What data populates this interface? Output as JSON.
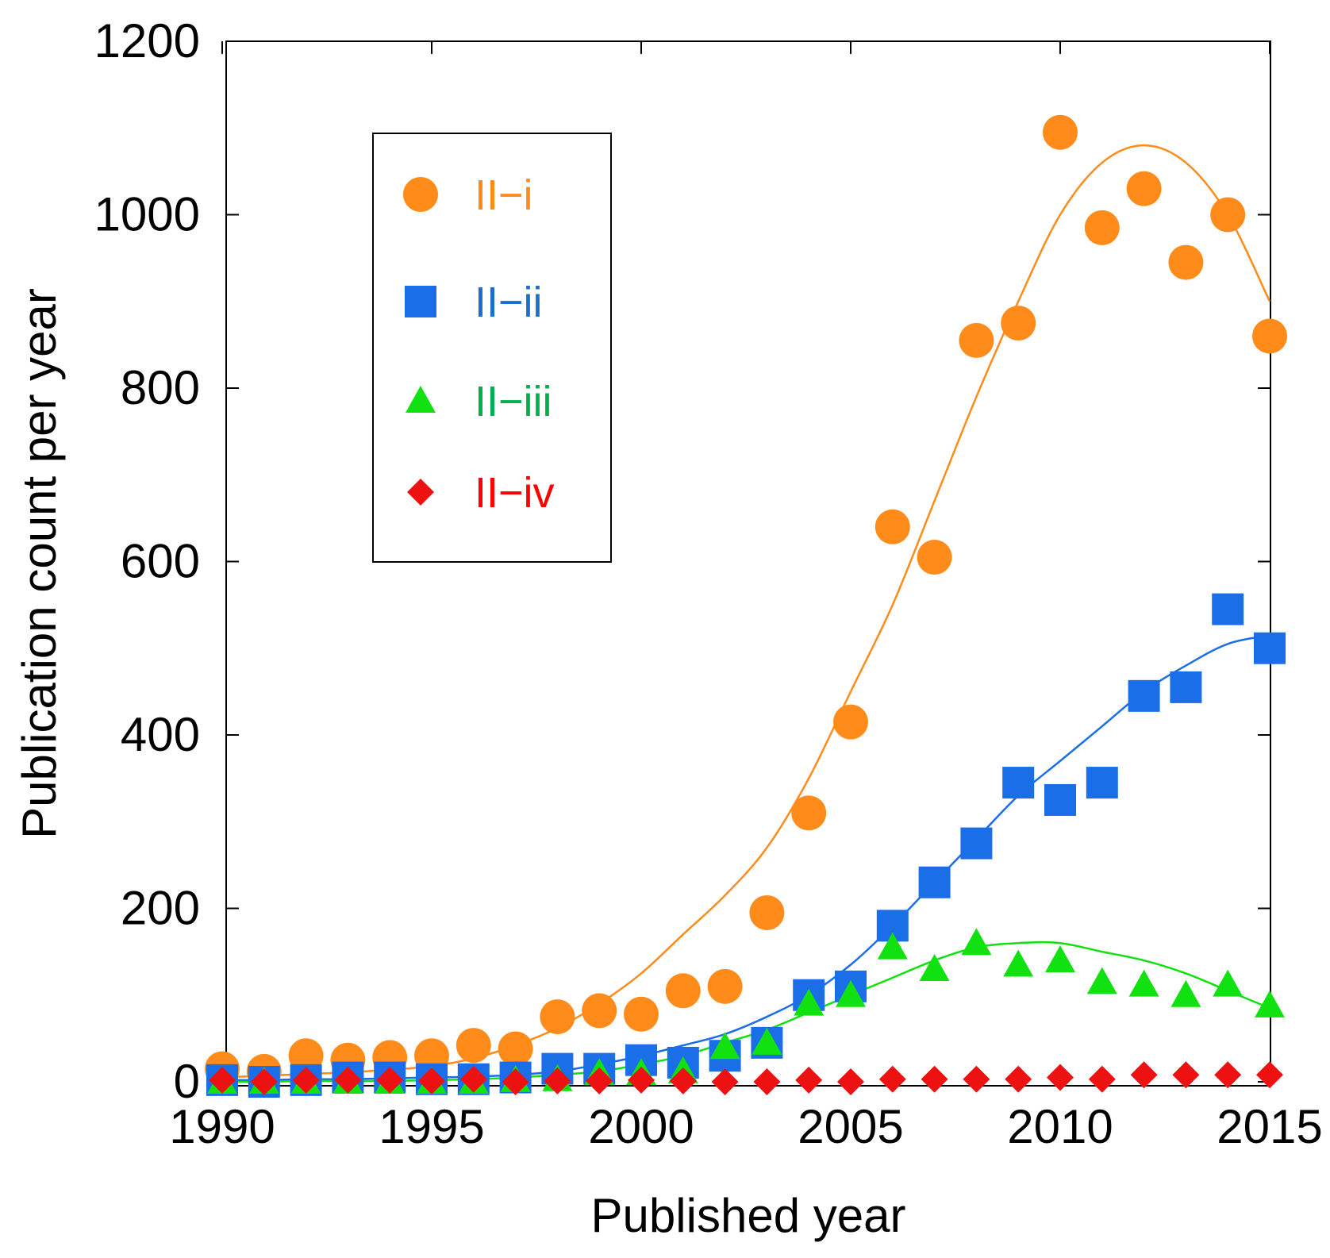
{
  "chart_data": {
    "type": "scatter",
    "title": "",
    "xlabel": "Published year",
    "ylabel": "Publication count per year",
    "xlim": [
      1990,
      2015
    ],
    "ylim": [
      0,
      1200
    ],
    "xticks": [
      1990,
      1995,
      2000,
      2005,
      2010,
      2015
    ],
    "yticks": [
      0,
      200,
      400,
      600,
      800,
      1000,
      1200
    ],
    "grid": false,
    "legend_position": "top-left",
    "x": [
      1990,
      1991,
      1992,
      1993,
      1994,
      1995,
      1996,
      1997,
      1998,
      1999,
      2000,
      2001,
      2002,
      2003,
      2004,
      2005,
      2006,
      2007,
      2008,
      2009,
      2010,
      2011,
      2012,
      2013,
      2014,
      2015
    ],
    "series": [
      {
        "name": "II−i",
        "color": "#ff8c1a",
        "label_color": "#ff8c1a",
        "marker": "circle",
        "values": [
          15,
          12,
          30,
          25,
          28,
          30,
          42,
          38,
          75,
          82,
          78,
          105,
          110,
          195,
          310,
          415,
          640,
          605,
          855,
          875,
          1095,
          985,
          1030,
          945,
          1000,
          860
        ],
        "fit": [
          5,
          7,
          9,
          11,
          14,
          18,
          27,
          42,
          62,
          90,
          125,
          170,
          215,
          270,
          350,
          450,
          550,
          670,
          790,
          900,
          1000,
          1060,
          1080,
          1060,
          1000,
          900
        ]
      },
      {
        "name": "II−ii",
        "color": "#1a6fe8",
        "label_color": "#1a70cc",
        "marker": "square",
        "values": [
          2,
          0,
          2,
          5,
          5,
          3,
          3,
          5,
          15,
          15,
          25,
          22,
          30,
          45,
          100,
          110,
          180,
          230,
          275,
          345,
          325,
          345,
          445,
          455,
          545,
          500
        ],
        "fit": [
          2,
          2,
          3,
          3,
          4,
          5,
          6,
          8,
          12,
          20,
          30,
          42,
          55,
          75,
          100,
          135,
          180,
          230,
          280,
          330,
          370,
          410,
          450,
          480,
          505,
          515
        ]
      },
      {
        "name": "II−iii",
        "color": "#11e011",
        "label_color": "#00b050",
        "marker": "triangle",
        "values": [
          0,
          0,
          0,
          0,
          0,
          0,
          0,
          2,
          3,
          10,
          10,
          12,
          40,
          45,
          90,
          100,
          155,
          130,
          160,
          135,
          140,
          115,
          112,
          100,
          112,
          88
        ],
        "fit": [
          0,
          0,
          1,
          1,
          1,
          2,
          3,
          5,
          8,
          12,
          20,
          30,
          45,
          60,
          80,
          100,
          120,
          140,
          155,
          160,
          160,
          150,
          140,
          125,
          105,
          85
        ]
      },
      {
        "name": "II−iv",
        "color": "#ee1111",
        "label_color": "#ff0000",
        "marker": "diamond",
        "values": [
          2,
          0,
          2,
          2,
          2,
          1,
          3,
          0,
          1,
          1,
          2,
          1,
          0,
          0,
          2,
          0,
          3,
          3,
          3,
          3,
          5,
          3,
          8,
          8,
          8,
          8
        ]
      }
    ]
  }
}
